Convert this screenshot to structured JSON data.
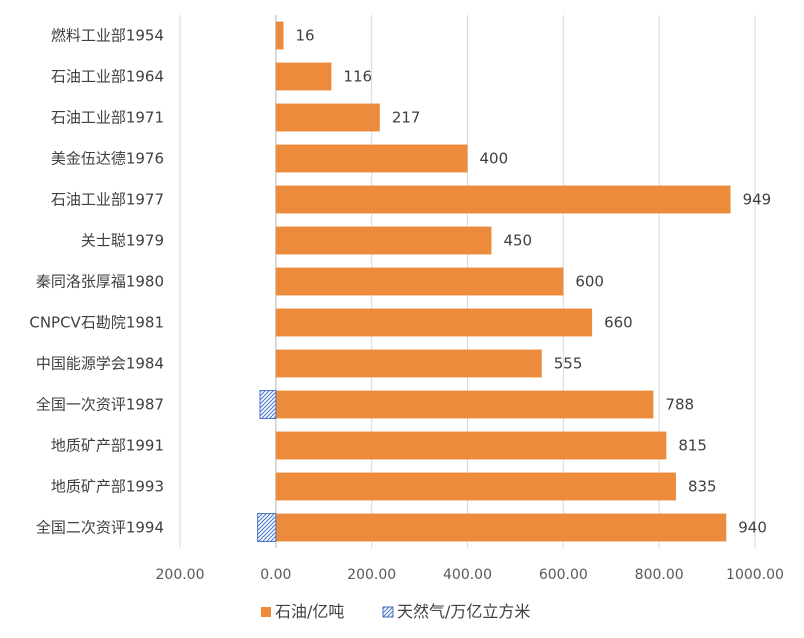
{
  "chart_data": {
    "type": "bar",
    "orientation": "horizontal",
    "categories": [
      "燃料工业部1954",
      "石油工业部1964",
      "石油工业部1971",
      "美金伍达德1976",
      "石油工业部1977",
      "关士聪1979",
      "秦同洛张厚福1980",
      "CNPCV石勘院1981",
      "中国能源学会1984",
      "全国一次资评1987",
      "地质矿产部1991",
      "地质矿产部1993",
      "全国二次资评1994"
    ],
    "series": [
      {
        "name": "石油/亿吨",
        "color": "#ED8B3D",
        "values": [
          16,
          116,
          217,
          400,
          949,
          450,
          600,
          660,
          555,
          788,
          815,
          835,
          940
        ],
        "labels": [
          "16",
          "116",
          "217",
          "400",
          "949",
          "450",
          "600",
          "660",
          "555",
          "788",
          "815",
          "835",
          "940"
        ]
      },
      {
        "name": "天然气/万亿立方米",
        "color": "#4472C4",
        "pattern": "hatch",
        "values": [
          null,
          null,
          null,
          null,
          null,
          null,
          null,
          null,
          null,
          33,
          null,
          null,
          38
        ]
      }
    ],
    "xlim": [
      -200,
      1000
    ],
    "xticks": [
      -200,
      0,
      200,
      400,
      600,
      800,
      1000
    ],
    "xtick_labels": [
      "200.00",
      "0.00",
      "200.00",
      "400.00",
      "600.00",
      "800.00",
      "1000.00"
    ],
    "grid": true,
    "legend": "bottom",
    "title": "",
    "xlabel": "",
    "ylabel": ""
  },
  "colors": {
    "oil": "#ED8B3D",
    "gas": "#4472C4",
    "grid": "#D9D9D9",
    "text": "#404040"
  }
}
